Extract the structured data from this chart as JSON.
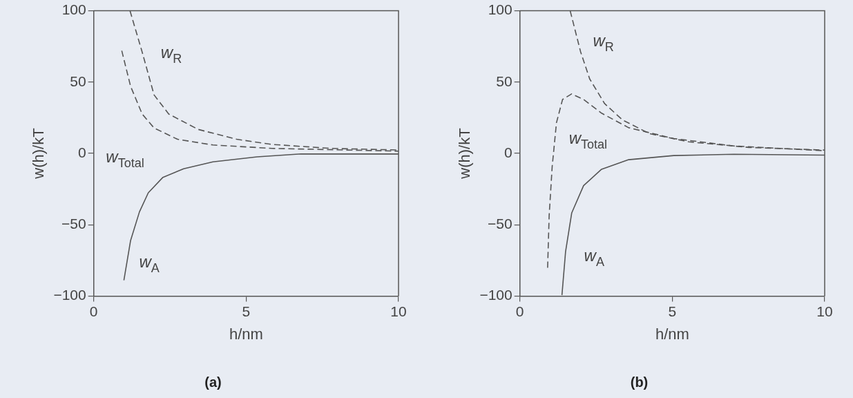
{
  "chart_data": [
    {
      "type": "line",
      "title": "(a)",
      "xlabel": "h/nm",
      "ylabel": "w(h)/kT",
      "xlim": [
        0,
        10
      ],
      "ylim": [
        -100,
        100
      ],
      "xticks": [
        0,
        5,
        10
      ],
      "yticks": [
        -100,
        -50,
        0,
        50,
        100
      ],
      "grid": false,
      "legend": false,
      "marker": "none",
      "series": [
        {
          "name": "w$_{R}$",
          "color": "#555555",
          "line_style": "dashed",
          "x": [
            1.19,
            1.59,
            1.98,
            2.46,
            3.43,
            4.69,
            5.85,
            7.78,
            10
          ],
          "values": [
            100,
            71,
            41,
            27.6,
            16.8,
            9.9,
            6.3,
            3.5,
            2.4
          ]
        },
        {
          "name": "w$_{Total}$",
          "color": "#555555",
          "line_style": "dashed",
          "x": [
            0.92,
            1.21,
            1.59,
            1.98,
            2.75,
            3.91,
            5.85,
            10
          ],
          "values": [
            72,
            47,
            27.6,
            17.8,
            9.9,
            5.9,
            3.5,
            1.6
          ]
        },
        {
          "name": "w$_{A}$",
          "color": "#555555",
          "line_style": "solid",
          "x": [
            0.99,
            1.21,
            1.5,
            1.79,
            2.27,
            2.95,
            3.91,
            5.36,
            6.8,
            10
          ],
          "values": [
            -89,
            -61,
            -41,
            -27.6,
            -16.8,
            -10.8,
            -5.9,
            -2.4,
            -0.4,
            -0.4
          ]
        }
      ]
    },
    {
      "type": "line",
      "title": "(b)",
      "xlabel": "h/nm",
      "ylabel": "w(h)/kT",
      "xlim": [
        0,
        10
      ],
      "ylim": [
        -100,
        100
      ],
      "xticks": [
        0,
        5,
        10
      ],
      "yticks": [
        -100,
        -50,
        0,
        50,
        100
      ],
      "grid": false,
      "legend": false,
      "marker": "none",
      "series": [
        {
          "name": "w$_{R}$",
          "color": "#555555",
          "line_style": "dashed",
          "x": [
            1.65,
            1.99,
            2.29,
            2.78,
            3.37,
            4.26,
            5.54,
            7.51,
            10
          ],
          "values": [
            100,
            71.4,
            52.2,
            34.9,
            23.4,
            13.8,
            8.1,
            4.2,
            2.3
          ]
        },
        {
          "name": "w$_{Total}$",
          "color": "#555555",
          "line_style": "dashed",
          "x": [
            0.91,
            0.96,
            1.06,
            1.2,
            1.4,
            1.7,
            2.09,
            2.68,
            3.57,
            5.05,
            7.02,
            10
          ],
          "values": [
            -80.2,
            -43.8,
            -9.2,
            21.5,
            37.8,
            41.7,
            37.8,
            28.2,
            18,
            10.4,
            5.2,
            1.9
          ]
        },
        {
          "name": "w$_{A}$",
          "color": "#555555",
          "line_style": "solid",
          "x": [
            1.38,
            1.5,
            1.7,
            2.09,
            2.68,
            3.57,
            5.05,
            7.02,
            10
          ],
          "values": [
            -99.4,
            -68.7,
            -41.8,
            -22.6,
            -11.1,
            -4.4,
            -1.5,
            -0.6,
            -1.2
          ]
        }
      ]
    }
  ]
}
